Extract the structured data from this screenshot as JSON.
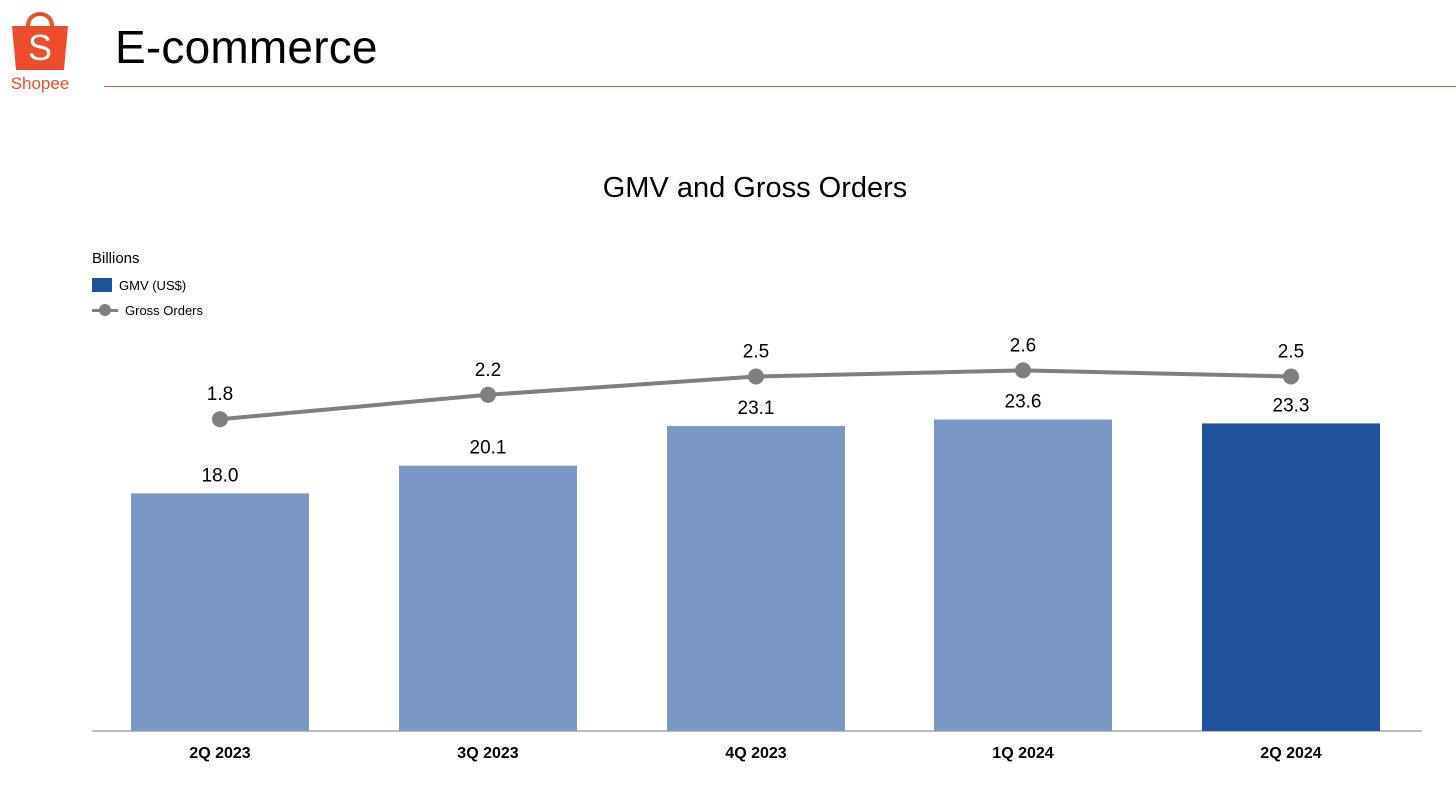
{
  "brand": {
    "name": "Shopee",
    "logo_letter": "S",
    "color": "#ee4d2d"
  },
  "header": {
    "title": "E-commerce",
    "rule_color": "#e05a4a"
  },
  "chart_data": {
    "type": "bar",
    "title": "GMV and Gross Orders",
    "unit_label": "Billions",
    "categories": [
      "2Q 2023",
      "3Q 2023",
      "4Q 2023",
      "1Q 2024",
      "2Q 2024"
    ],
    "series": [
      {
        "name": "GMV (US$)",
        "type": "bar",
        "values": [
          18.0,
          20.1,
          23.1,
          23.6,
          23.3
        ],
        "labels": [
          "18.0",
          "20.1",
          "23.1",
          "23.6",
          "23.3"
        ],
        "colors": [
          "#7b98c5",
          "#7b98c5",
          "#7b98c5",
          "#7b98c5",
          "#1f539e"
        ]
      },
      {
        "name": "Gross Orders",
        "type": "line",
        "values": [
          1.8,
          2.2,
          2.5,
          2.6,
          2.5
        ],
        "labels": [
          "1.8",
          "2.2",
          "2.5",
          "2.6",
          "2.5"
        ],
        "color": "#7f7f7f"
      }
    ],
    "legend_position": "top-left",
    "grid": false
  }
}
